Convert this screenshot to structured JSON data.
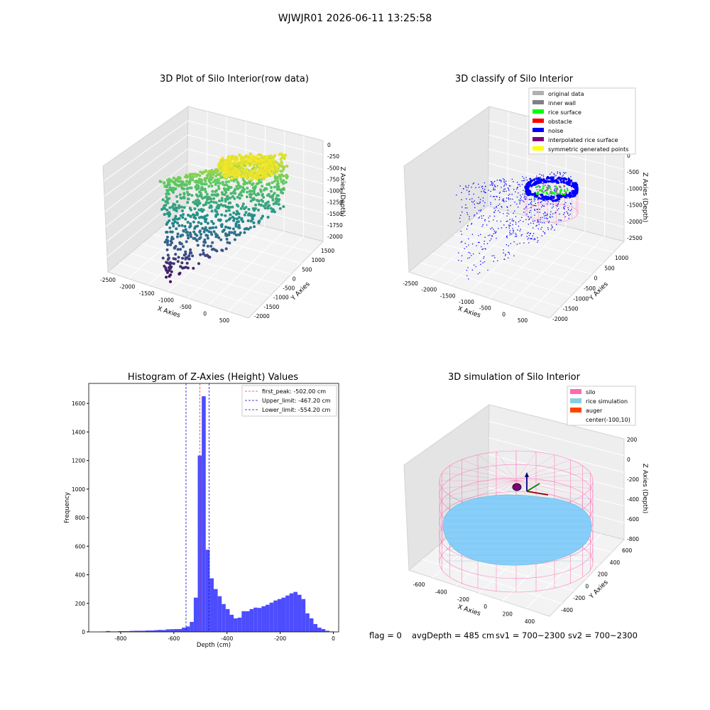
{
  "suptitle": "WJWJR01 2026-06-11 13:25:58",
  "status": {
    "flag": "flag = 0",
    "avg": "avgDepth = 485 cm",
    "sv1": "sv1 = 700~2300",
    "sv2": "sv2 = 700~2300"
  },
  "colors": {
    "pane": "#ebebeb",
    "pane_side": "#e2e2e2",
    "grid": "#ffffff",
    "histogram_bar": "#4d4dff",
    "first_peak_line": "#ff3030",
    "limit_line": "#1010c0",
    "noise": "#0000ff",
    "silo": "#ff69b4",
    "rice": "#87cefa"
  },
  "chart_data": [
    {
      "type": "scatter",
      "title": "3D Plot of Silo Interior(row data)",
      "xlabel": "X Axies",
      "ylabel": "Y Axies",
      "zlabel": "Z Axies (Depth)",
      "x_ticks": [
        "-2500",
        "-2000",
        "-1500",
        "-1000",
        "-500",
        "0",
        "500"
      ],
      "y_ticks": [
        "-2000",
        "-1500",
        "-1000",
        "-500",
        "0",
        "500",
        "1000",
        "1500"
      ],
      "z_ticks": [
        "0",
        "-250",
        "-500",
        "-750",
        "-1000",
        "-1250",
        "-1500",
        "-1750",
        "-2000"
      ],
      "colormap": "viridis"
    },
    {
      "type": "scatter",
      "title": "3D classify of Silo Interior",
      "xlabel": "X Axies",
      "ylabel": "Y Axies",
      "zlabel": "Z Axies (Depth)",
      "x_ticks": [
        "-2500",
        "-2000",
        "-1500",
        "-1000",
        "-500",
        "0",
        "500"
      ],
      "y_ticks": [
        "-2000",
        "-1500",
        "-1000",
        "-500",
        "0",
        "500",
        "1000"
      ],
      "z_ticks": [
        "0",
        "-500",
        "-1000",
        "-1500",
        "-2000",
        "-2500"
      ],
      "legend": [
        {
          "label": "original data",
          "color": "#b0b0b0"
        },
        {
          "label": "inner wall",
          "color": "#808080"
        },
        {
          "label": "rice surface",
          "color": "#00ff00"
        },
        {
          "label": "obstacle",
          "color": "#ff0000"
        },
        {
          "label": "noise",
          "color": "#0000ff"
        },
        {
          "label": "interpolated rice surface",
          "color": "#800080"
        },
        {
          "label": "symmetric generated points",
          "color": "#ffff00"
        }
      ]
    },
    {
      "type": "bar",
      "title": "Histogram of Z-Axies (Height) Values",
      "xlabel": "Depth (cm)",
      "ylabel": "Frequency",
      "xlim": [
        -920,
        20
      ],
      "ylim": [
        0,
        1740
      ],
      "x_ticks": [
        -800,
        -600,
        -400,
        -200,
        0
      ],
      "y_ticks": [
        0,
        200,
        400,
        600,
        800,
        1000,
        1200,
        1400,
        1600
      ],
      "bin_width": 15,
      "bins_start": [
        -870,
        -855,
        -840,
        -825,
        -810,
        -795,
        -780,
        -765,
        -750,
        -735,
        -720,
        -705,
        -690,
        -675,
        -660,
        -645,
        -630,
        -615,
        -600,
        -585,
        -570,
        -555,
        -540,
        -525,
        -510,
        -495,
        -480,
        -465,
        -450,
        -435,
        -420,
        -405,
        -390,
        -375,
        -360,
        -345,
        -330,
        -315,
        -300,
        -285,
        -270,
        -255,
        -240,
        -225,
        -210,
        -195,
        -180,
        -165,
        -150,
        -135,
        -120,
        -105,
        -90,
        -75,
        -60,
        -45,
        -30,
        -15
      ],
      "counts": [
        2,
        6,
        3,
        3,
        5,
        5,
        5,
        7,
        8,
        8,
        8,
        10,
        10,
        12,
        14,
        13,
        18,
        19,
        20,
        20,
        30,
        38,
        70,
        240,
        1235,
        1650,
        575,
        375,
        300,
        250,
        195,
        160,
        120,
        95,
        100,
        145,
        145,
        160,
        170,
        168,
        180,
        190,
        205,
        220,
        230,
        240,
        255,
        270,
        280,
        260,
        230,
        130,
        95,
        55,
        30,
        20,
        8,
        3
      ],
      "vlines": [
        {
          "label": "first_peak: -502.00 cm",
          "x": -502,
          "color": "#ff3030"
        },
        {
          "label": "Upper_limit: -467.20 cm",
          "x": -467.2,
          "color": "#1010c0"
        },
        {
          "label": "Lower_limit: -554.20 cm",
          "x": -554.2,
          "color": "#1010c0"
        }
      ]
    },
    {
      "type": "scatter",
      "title": "3D simulation of Silo Interior",
      "xlabel": "X Axies",
      "ylabel": "Y Axies",
      "zlabel": "Z Axies (Depth)",
      "x_ticks": [
        "-600",
        "-400",
        "-200",
        "0",
        "200",
        "400"
      ],
      "y_ticks": [
        "-400",
        "-200",
        "0",
        "200",
        "400",
        "600"
      ],
      "z_ticks": [
        "200",
        "0",
        "-200",
        "-400",
        "-600",
        "-800"
      ],
      "legend": [
        {
          "label": "silo",
          "color": "#ff69b4"
        },
        {
          "label": "rice simulation",
          "color": "#87ceeb"
        },
        {
          "label": "auger",
          "color": "#ff4500"
        },
        {
          "label": "center(-100,10)",
          "color": ""
        }
      ]
    }
  ]
}
